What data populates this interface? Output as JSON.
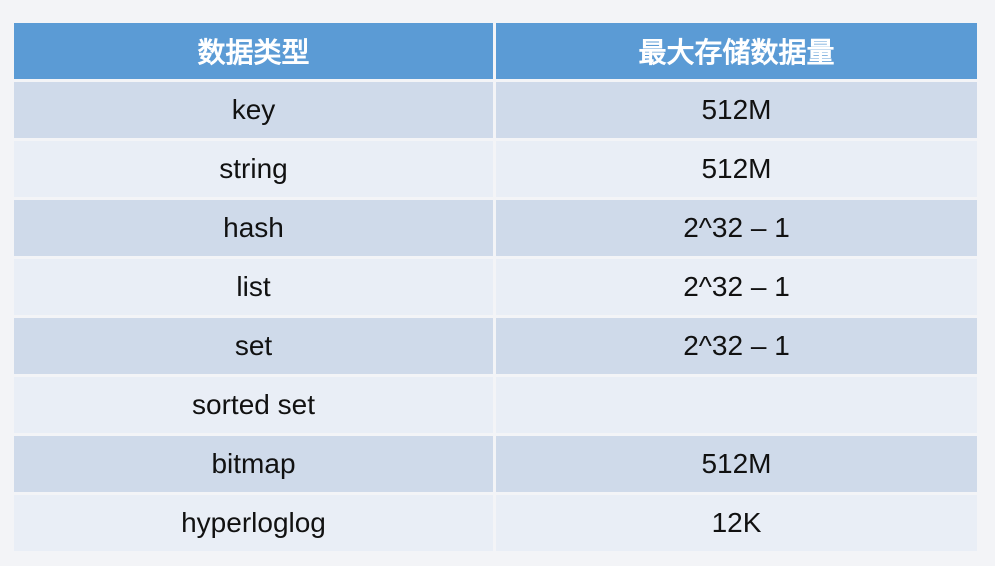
{
  "table": {
    "headers": [
      "数据类型",
      "最大存储数据量"
    ],
    "rows": [
      {
        "type": "key",
        "max": "512M"
      },
      {
        "type": "string",
        "max": "512M"
      },
      {
        "type": "hash",
        "max": "2^32 – 1"
      },
      {
        "type": "list",
        "max": "2^32 – 1"
      },
      {
        "type": "set",
        "max": "2^32 – 1"
      },
      {
        "type": "sorted set",
        "max": ""
      },
      {
        "type": "bitmap",
        "max": "512M"
      },
      {
        "type": "hyperloglog",
        "max": "12K"
      }
    ]
  },
  "colors": {
    "header": "#5b9bd5",
    "row_dark": "#cfdaea",
    "row_light": "#e9eef6",
    "background": "#f3f4f7"
  }
}
